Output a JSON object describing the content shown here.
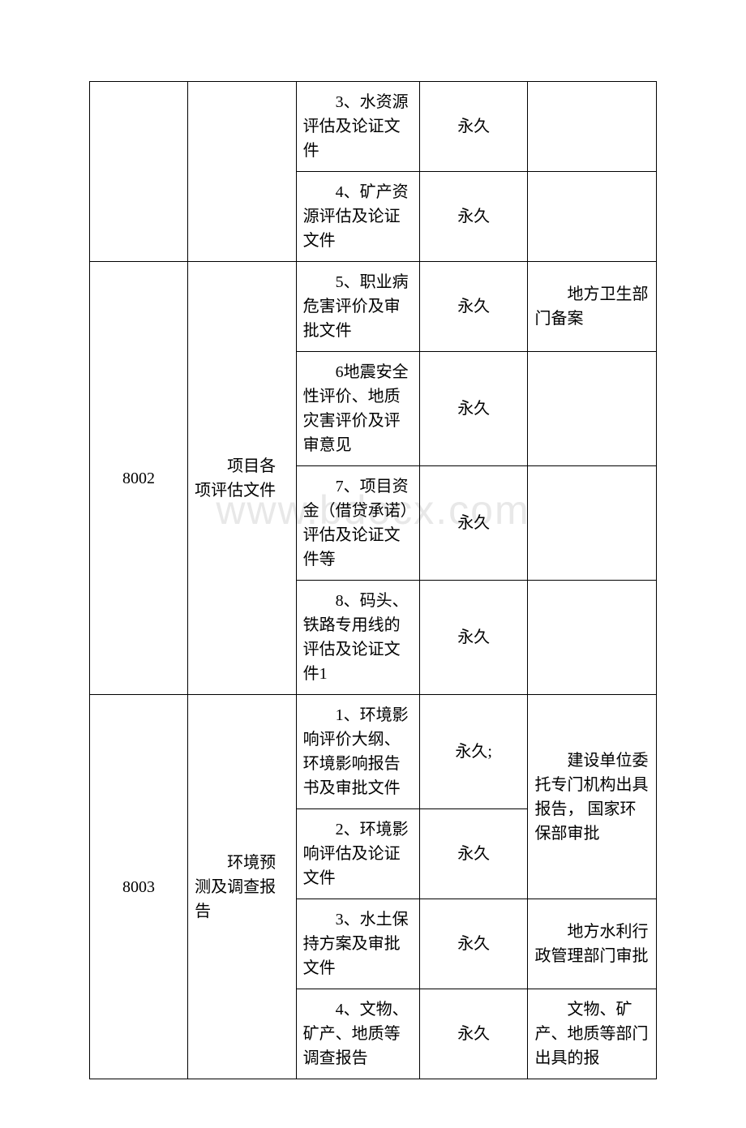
{
  "watermark": "www.bdocx.com",
  "rows": [
    {
      "col1": "",
      "col2": "",
      "col3": "　　3、水资源评估及论证文件",
      "col4": "永久",
      "col5": ""
    },
    {
      "col1": "",
      "col2": "",
      "col3": "　　4、矿产资源评估及论证文件",
      "col4": "永久",
      "col5": ""
    },
    {
      "col1": "8002",
      "col2": "　　项目各项评估文件",
      "col3": "　　5、职业病危害评价及审批文件",
      "col4": "永久",
      "col5": "　　地方卫生部门备案"
    },
    {
      "col3": "　　6地震安全性评价、地质灾害评价及评审意见",
      "col4": "永久",
      "col5": ""
    },
    {
      "col3": "　　7、项目资金（借贷承诺）评估及论证文件等",
      "col4": "永久",
      "col5": ""
    },
    {
      "col3": "　　8、码头、铁路专用线的评估及论证文件1",
      "col4": "永久",
      "col5": ""
    },
    {
      "col1": "8003",
      "col2": "　　环境预测及调查报告",
      "col3": "　　1、环境影响评价大纲、环境影响报告书及审批文件",
      "col4": "永久;",
      "col5": "　　建设单位委托专门机构出具报告， 国家环保部审批"
    },
    {
      "col3": "　　2、环境影响评估及论证文件",
      "col4": "永久"
    },
    {
      "col3": "　　3、水土保持方案及审批文件",
      "col4": "永久",
      "col5": "　　地方水利行政管理部门审批"
    },
    {
      "col3": "　　4、文物、矿产、地质等调查报告",
      "col4": "永久",
      "col5": "　　文物、矿产、地质等部门出具的报"
    }
  ]
}
